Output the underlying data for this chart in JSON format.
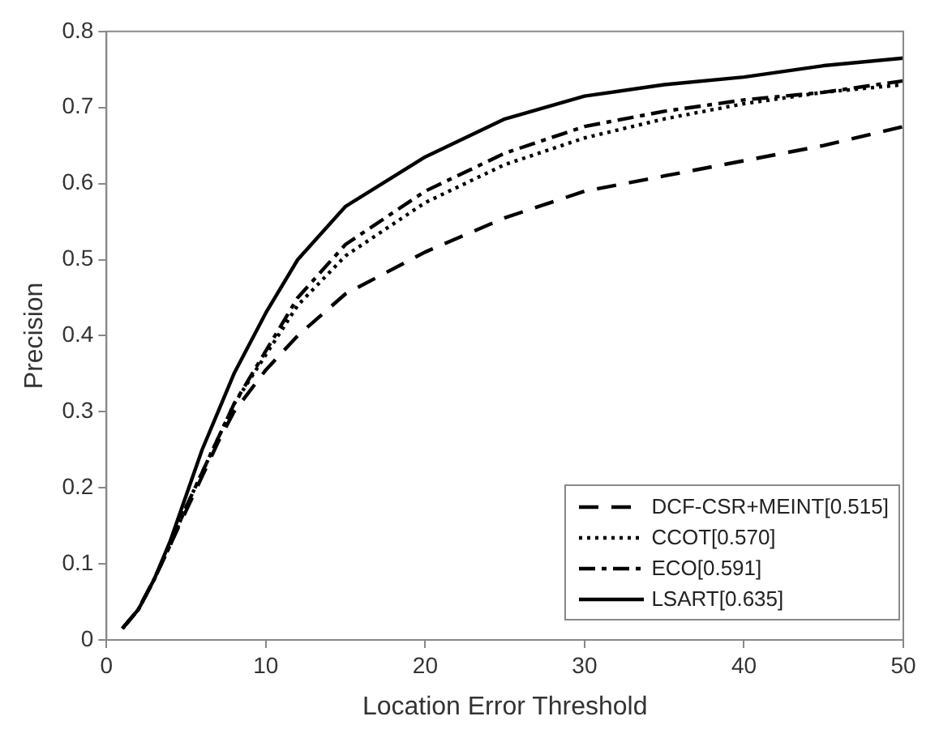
{
  "chart_data": {
    "type": "line",
    "xlabel": "Location Error Threshold",
    "ylabel": "Precision",
    "xlim": [
      0,
      50
    ],
    "xticks": [
      0,
      10,
      20,
      30,
      40,
      50
    ],
    "ylim": [
      0,
      0.8
    ],
    "yticks": [
      0,
      0.1,
      0.2,
      0.3,
      0.4,
      0.5,
      0.6,
      0.7,
      0.8
    ],
    "grid": false,
    "legend": "bottom right",
    "marker": "none",
    "x": [
      1,
      2,
      3,
      4,
      5,
      6,
      7,
      8,
      10,
      12,
      15,
      20,
      25,
      30,
      35,
      40,
      45,
      50
    ],
    "series": [
      {
        "name": "DCF-CSR+MEINT[0.515]",
        "color": "#000000",
        "line_style": "dashed",
        "values": [
          0.015,
          0.04,
          0.08,
          0.125,
          0.17,
          0.215,
          0.26,
          0.3,
          0.355,
          0.4,
          0.455,
          0.51,
          0.555,
          0.59,
          0.61,
          0.63,
          0.65,
          0.675
        ]
      },
      {
        "name": "CCOT[0.570]",
        "color": "#000000",
        "line_style": "dotted",
        "values": [
          0.015,
          0.04,
          0.08,
          0.125,
          0.175,
          0.22,
          0.265,
          0.31,
          0.375,
          0.44,
          0.505,
          0.575,
          0.625,
          0.66,
          0.685,
          0.705,
          0.72,
          0.73
        ]
      },
      {
        "name": "ECO[0.591]",
        "color": "#000000",
        "line_style": "dashdot",
        "values": [
          0.015,
          0.04,
          0.08,
          0.125,
          0.175,
          0.22,
          0.265,
          0.31,
          0.38,
          0.45,
          0.52,
          0.59,
          0.64,
          0.675,
          0.695,
          0.71,
          0.72,
          0.735
        ]
      },
      {
        "name": "LSART[0.635]",
        "color": "#000000",
        "line_style": "solid",
        "values": [
          0.015,
          0.04,
          0.08,
          0.13,
          0.19,
          0.25,
          0.3,
          0.35,
          0.43,
          0.5,
          0.57,
          0.635,
          0.685,
          0.715,
          0.73,
          0.74,
          0.755,
          0.765
        ]
      }
    ]
  }
}
